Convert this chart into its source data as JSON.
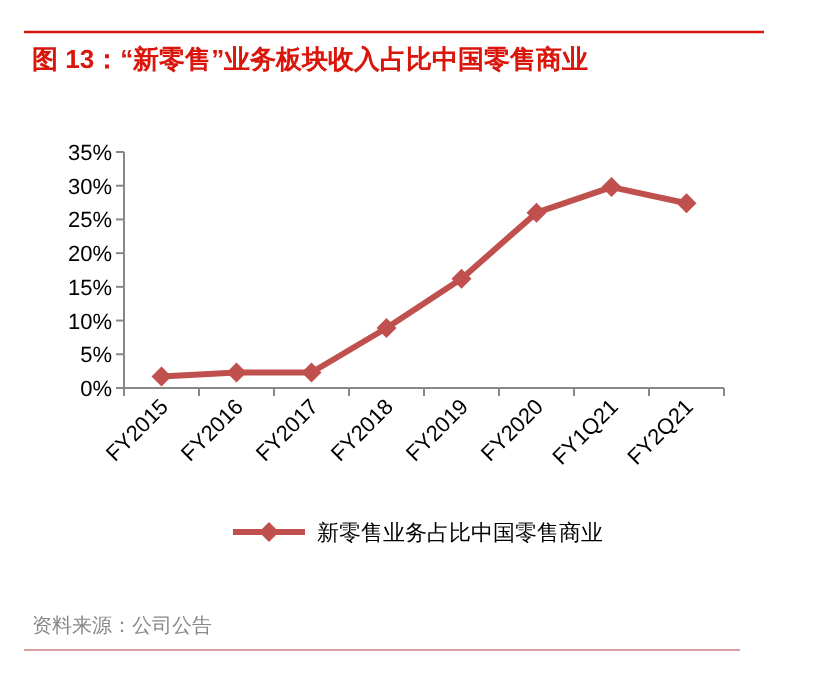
{
  "chart_data": {
    "type": "line",
    "title": "图 13：“新零售”业务板块收入占比中国零售商业",
    "categories": [
      "FY2015",
      "FY2016",
      "FY2017",
      "FY2018",
      "FY2019",
      "FY2020",
      "FY1Q21",
      "FY2Q21"
    ],
    "series": [
      {
        "name": "新零售业务占比中国零售商业",
        "color": "#c0504d",
        "values": [
          1.7,
          2.3,
          2.3,
          8.9,
          16.2,
          26.0,
          29.8,
          27.4
        ]
      }
    ],
    "ylim": [
      0,
      35
    ],
    "yticks": [
      {
        "value": 0,
        "label": "0%"
      },
      {
        "value": 5,
        "label": "5%"
      },
      {
        "value": 10,
        "label": "10%"
      },
      {
        "value": 15,
        "label": "15%"
      },
      {
        "value": 20,
        "label": "20%"
      },
      {
        "value": 25,
        "label": "25%"
      },
      {
        "value": 30,
        "label": "30%"
      },
      {
        "value": 35,
        "label": "35%"
      }
    ],
    "grid": false,
    "legend": "bottom",
    "marker": "diamond",
    "line_style": "solid",
    "annotations": [
      "资料来源：公司公告"
    ]
  }
}
